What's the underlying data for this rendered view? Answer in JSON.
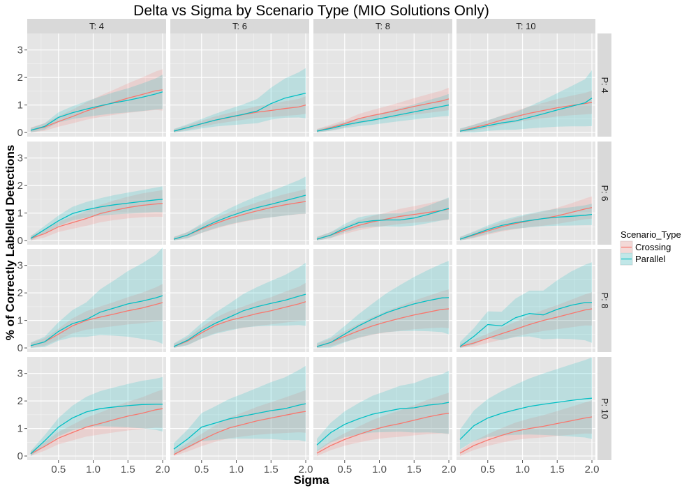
{
  "chart_data": {
    "type": "line",
    "title": "Delta vs Sigma by Scenario Type (MIO Solutions Only)",
    "xlabel": "Sigma",
    "ylabel": "% of Correctly Labelled Detections",
    "xlim": [
      0.05,
      2.05
    ],
    "ylim": [
      -0.15,
      3.6
    ],
    "x_ticks": [
      0.5,
      1.0,
      1.5,
      2.0
    ],
    "x_tick_labels": [
      "0.5",
      "1.0",
      "1.5",
      "2.0"
    ],
    "y_ticks": [
      0,
      1,
      2,
      3
    ],
    "y_tick_labels": [
      "0",
      "1",
      "2",
      "3"
    ],
    "grid": true,
    "legend_position": "right",
    "legend_title": "Scenario_Type",
    "series_names": [
      "Crossing",
      "Parallel"
    ],
    "colors": {
      "Crossing": "#F8766D",
      "Parallel": "#00BFC4",
      "panel_bg": "#E5E5E5",
      "strip_bg": "#D9D9D9",
      "grid": "#FFFFFF"
    },
    "column_labels": [
      "T: 4",
      "T: 6",
      "T: 8",
      "T: 10"
    ],
    "row_labels": [
      "P: 4",
      "P: 6",
      "P: 8",
      "P: 10"
    ],
    "x": [
      0.1,
      0.3,
      0.5,
      0.7,
      0.9,
      1.1,
      1.3,
      1.5,
      1.7,
      1.9,
      2.0
    ],
    "panels": [
      {
        "row": "P: 4",
        "col": "T: 4",
        "crossing": [
          0.08,
          0.2,
          0.4,
          0.58,
          0.78,
          0.95,
          1.1,
          1.25,
          1.38,
          1.52,
          1.55
        ],
        "crossing_band": [
          0.3,
          0.7
        ],
        "parallel": [
          0.08,
          0.22,
          0.55,
          0.72,
          0.85,
          0.97,
          1.08,
          1.17,
          1.28,
          1.4,
          1.48
        ],
        "parallel_band": [
          0.25,
          0.6
        ]
      },
      {
        "row": "P: 4",
        "col": "T: 6",
        "crossing": [
          0.05,
          0.18,
          0.32,
          0.45,
          0.55,
          0.65,
          0.74,
          0.8,
          0.87,
          0.93,
          1.0
        ],
        "crossing_band": [
          0.2,
          0.4
        ],
        "parallel": [
          0.05,
          0.18,
          0.32,
          0.45,
          0.56,
          0.66,
          0.78,
          1.05,
          1.25,
          1.37,
          1.43
        ],
        "parallel_band": [
          0.25,
          0.9
        ]
      },
      {
        "row": "P: 4",
        "col": "T: 8",
        "crossing": [
          0.05,
          0.18,
          0.32,
          0.5,
          0.62,
          0.72,
          0.83,
          0.95,
          1.05,
          1.15,
          1.22
        ],
        "crossing_band": [
          0.25,
          0.45
        ],
        "parallel": [
          0.05,
          0.15,
          0.27,
          0.37,
          0.45,
          0.55,
          0.65,
          0.75,
          0.85,
          0.95,
          1.0
        ],
        "parallel_band": [
          0.2,
          0.5
        ]
      },
      {
        "row": "P: 4",
        "col": "T: 10",
        "crossing": [
          0.05,
          0.18,
          0.3,
          0.45,
          0.58,
          0.7,
          0.8,
          0.9,
          0.98,
          1.05,
          1.1
        ],
        "crossing_band": [
          0.25,
          0.5
        ],
        "parallel": [
          0.05,
          0.14,
          0.25,
          0.35,
          0.42,
          0.55,
          0.68,
          0.82,
          0.95,
          1.08,
          1.25
        ],
        "parallel_band": [
          0.3,
          1.1
        ]
      },
      {
        "row": "P: 6",
        "col": "T: 4",
        "crossing": [
          0.08,
          0.25,
          0.5,
          0.65,
          0.8,
          0.98,
          1.1,
          1.2,
          1.28,
          1.33,
          1.35
        ],
        "crossing_band": [
          0.3,
          0.5
        ],
        "parallel": [
          0.08,
          0.4,
          0.72,
          0.98,
          1.12,
          1.22,
          1.3,
          1.36,
          1.42,
          1.48,
          1.5
        ],
        "parallel_band": [
          0.25,
          0.45
        ]
      },
      {
        "row": "P: 6",
        "col": "T: 6",
        "crossing": [
          0.05,
          0.2,
          0.42,
          0.62,
          0.8,
          0.95,
          1.08,
          1.2,
          1.3,
          1.38,
          1.42
        ],
        "crossing_band": [
          0.25,
          0.45
        ],
        "parallel": [
          0.05,
          0.2,
          0.45,
          0.68,
          0.88,
          1.05,
          1.2,
          1.32,
          1.45,
          1.58,
          1.65
        ],
        "parallel_band": [
          0.25,
          0.6
        ]
      },
      {
        "row": "P: 6",
        "col": "T: 8",
        "crossing": [
          0.05,
          0.2,
          0.38,
          0.55,
          0.68,
          0.78,
          0.88,
          0.95,
          1.02,
          1.1,
          1.15
        ],
        "crossing_band": [
          0.25,
          0.45
        ],
        "parallel": [
          0.05,
          0.2,
          0.45,
          0.65,
          0.72,
          0.75,
          0.75,
          0.82,
          0.95,
          1.1,
          1.17
        ],
        "parallel_band": [
          0.25,
          0.45
        ]
      },
      {
        "row": "P: 6",
        "col": "T: 10",
        "crossing": [
          0.05,
          0.2,
          0.35,
          0.5,
          0.62,
          0.72,
          0.8,
          0.9,
          1.02,
          1.15,
          1.2
        ],
        "crossing_band": [
          0.25,
          0.45
        ],
        "parallel": [
          0.05,
          0.22,
          0.4,
          0.55,
          0.65,
          0.73,
          0.8,
          0.85,
          0.88,
          0.92,
          0.95
        ],
        "parallel_band": [
          0.25,
          0.5
        ]
      },
      {
        "row": "P: 8",
        "col": "T: 4",
        "crossing": [
          0.08,
          0.22,
          0.5,
          0.8,
          1.0,
          1.12,
          1.23,
          1.35,
          1.45,
          1.58,
          1.65
        ],
        "crossing_band": [
          0.3,
          0.6
        ],
        "parallel": [
          0.08,
          0.22,
          0.6,
          0.88,
          1.03,
          1.3,
          1.45,
          1.6,
          1.7,
          1.82,
          1.9
        ],
        "parallel_band": [
          0.35,
          1.4
        ]
      },
      {
        "row": "P: 8",
        "col": "T: 6",
        "crossing": [
          0.05,
          0.25,
          0.55,
          0.82,
          1.0,
          1.12,
          1.25,
          1.35,
          1.48,
          1.6,
          1.68
        ],
        "crossing_band": [
          0.3,
          0.6
        ],
        "parallel": [
          0.05,
          0.28,
          0.62,
          0.9,
          1.12,
          1.35,
          1.5,
          1.62,
          1.73,
          1.88,
          1.95
        ],
        "parallel_band": [
          0.35,
          0.9
        ]
      },
      {
        "row": "P: 8",
        "col": "T: 8",
        "crossing": [
          0.05,
          0.2,
          0.42,
          0.62,
          0.8,
          0.95,
          1.08,
          1.2,
          1.3,
          1.4,
          1.42
        ],
        "crossing_band": [
          0.3,
          0.7
        ],
        "parallel": [
          0.05,
          0.2,
          0.5,
          0.8,
          1.05,
          1.28,
          1.45,
          1.6,
          1.72,
          1.82,
          1.83
        ],
        "parallel_band": [
          0.4,
          1.1
        ]
      },
      {
        "row": "P: 8",
        "col": "T: 10",
        "crossing": [
          0.05,
          0.18,
          0.35,
          0.52,
          0.68,
          0.85,
          1.0,
          1.12,
          1.25,
          1.38,
          1.42
        ],
        "crossing_band": [
          0.3,
          0.6
        ],
        "parallel": [
          0.05,
          0.42,
          0.85,
          0.8,
          1.1,
          1.25,
          1.2,
          1.4,
          1.55,
          1.65,
          1.65
        ],
        "parallel_band": [
          0.5,
          1.3
        ]
      },
      {
        "row": "P: 10",
        "col": "T: 4",
        "crossing": [
          0.08,
          0.35,
          0.65,
          0.85,
          1.05,
          1.18,
          1.32,
          1.45,
          1.55,
          1.68,
          1.72
        ],
        "crossing_band": [
          0.3,
          0.6
        ],
        "parallel": [
          0.08,
          0.55,
          1.05,
          1.38,
          1.6,
          1.72,
          1.78,
          1.83,
          1.87,
          1.88,
          1.88
        ],
        "parallel_band": [
          0.3,
          0.8
        ]
      },
      {
        "row": "P: 10",
        "col": "T: 6",
        "crossing": [
          0.05,
          0.32,
          0.58,
          0.82,
          1.02,
          1.15,
          1.28,
          1.38,
          1.48,
          1.58,
          1.62
        ],
        "crossing_band": [
          0.3,
          0.7
        ],
        "parallel": [
          0.25,
          0.62,
          1.05,
          1.2,
          1.35,
          1.45,
          1.55,
          1.65,
          1.72,
          1.85,
          1.9
        ],
        "parallel_band": [
          0.5,
          1.1
        ]
      },
      {
        "row": "P: 10",
        "col": "T: 8",
        "crossing": [
          0.1,
          0.38,
          0.6,
          0.78,
          0.95,
          1.08,
          1.18,
          1.3,
          1.42,
          1.52,
          1.55
        ],
        "crossing_band": [
          0.3,
          0.7
        ],
        "parallel": [
          0.4,
          0.85,
          1.15,
          1.35,
          1.52,
          1.62,
          1.72,
          1.75,
          1.85,
          1.9,
          1.95
        ],
        "parallel_band": [
          0.45,
          0.9
        ]
      },
      {
        "row": "P: 10",
        "col": "T: 10",
        "crossing": [
          0.1,
          0.38,
          0.58,
          0.75,
          0.9,
          1.0,
          1.08,
          1.18,
          1.28,
          1.38,
          1.42
        ],
        "crossing_band": [
          0.3,
          0.6
        ],
        "parallel": [
          0.6,
          1.1,
          1.38,
          1.55,
          1.68,
          1.8,
          1.88,
          1.95,
          2.02,
          2.08,
          2.1
        ],
        "parallel_band": [
          0.6,
          1.1
        ]
      }
    ]
  }
}
